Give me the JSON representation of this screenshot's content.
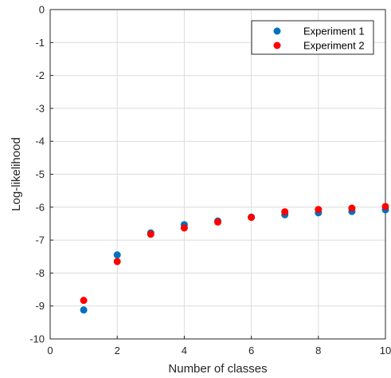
{
  "chart_data": {
    "type": "scatter",
    "title": "",
    "xlabel": "Number of classes",
    "ylabel": "Log-likelihood",
    "xlim": [
      0,
      10
    ],
    "ylim": [
      -10,
      0
    ],
    "xticks": [
      0,
      2,
      4,
      6,
      8,
      10
    ],
    "yticks": [
      0,
      -1,
      -2,
      -3,
      -4,
      -5,
      -6,
      -7,
      -8,
      -9,
      -10
    ],
    "grid": true,
    "legend_position": "top-right",
    "series": [
      {
        "name": "Experiment 1",
        "color": "#0072BD",
        "x": [
          1,
          2,
          3,
          4,
          5,
          6,
          7,
          8,
          9,
          10
        ],
        "y": [
          -9.12,
          -7.45,
          -6.78,
          -6.53,
          -6.42,
          -6.3,
          -6.23,
          -6.17,
          -6.13,
          -6.08
        ]
      },
      {
        "name": "Experiment 2",
        "color": "#FF0000",
        "x": [
          1,
          2,
          3,
          4,
          5,
          6,
          7,
          8,
          9,
          10
        ],
        "y": [
          -8.83,
          -7.65,
          -6.82,
          -6.63,
          -6.45,
          -6.31,
          -6.14,
          -6.07,
          -6.03,
          -5.98
        ]
      }
    ]
  }
}
